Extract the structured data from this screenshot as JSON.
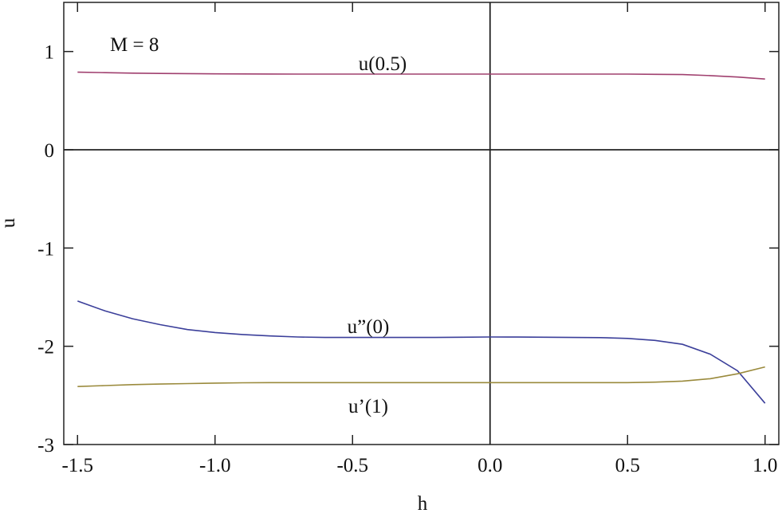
{
  "chart_data": {
    "type": "line",
    "x_label": "h",
    "y_label": "u",
    "annotation": "M = 8",
    "x": [
      -1.5,
      -1.4,
      -1.3,
      -1.2,
      -1.1,
      -1.0,
      -0.9,
      -0.8,
      -0.7,
      -0.6,
      -0.5,
      -0.4,
      -0.3,
      -0.2,
      -0.1,
      0.0,
      0.1,
      0.2,
      0.3,
      0.4,
      0.5,
      0.6,
      0.7,
      0.8,
      0.9,
      1.0
    ],
    "series": [
      {
        "name": "u(0.5)",
        "color": "#a0406f",
        "values": [
          0.79,
          0.785,
          0.78,
          0.777,
          0.775,
          0.773,
          0.772,
          0.771,
          0.77,
          0.77,
          0.77,
          0.77,
          0.77,
          0.77,
          0.77,
          0.77,
          0.77,
          0.77,
          0.77,
          0.77,
          0.77,
          0.768,
          0.765,
          0.755,
          0.74,
          0.72
        ]
      },
      {
        "name": "u”(0)",
        "color": "#3b3f9a",
        "values": [
          -1.54,
          -1.64,
          -1.72,
          -1.78,
          -1.83,
          -1.86,
          -1.88,
          -1.895,
          -1.905,
          -1.91,
          -1.91,
          -1.91,
          -1.91,
          -1.91,
          -1.908,
          -1.905,
          -1.906,
          -1.908,
          -1.91,
          -1.912,
          -1.92,
          -1.94,
          -1.98,
          -2.08,
          -2.25,
          -2.58
        ]
      },
      {
        "name": "u’(1)",
        "color": "#9a8a3c",
        "values": [
          -2.41,
          -2.4,
          -2.39,
          -2.385,
          -2.38,
          -2.375,
          -2.372,
          -2.37,
          -2.37,
          -2.37,
          -2.37,
          -2.37,
          -2.37,
          -2.37,
          -2.37,
          -2.37,
          -2.37,
          -2.37,
          -2.37,
          -2.37,
          -2.37,
          -2.365,
          -2.355,
          -2.33,
          -2.28,
          -2.21
        ]
      }
    ],
    "xlim": [
      -1.55,
      1.05
    ],
    "ylim": [
      -3,
      1.5
    ],
    "xticks": [
      {
        "value": -1.5,
        "label": "-1.5"
      },
      {
        "value": -1.0,
        "label": "-1.0"
      },
      {
        "value": -0.5,
        "label": "-0.5"
      },
      {
        "value": 0.0,
        "label": "0.0"
      },
      {
        "value": 0.5,
        "label": "0.5"
      },
      {
        "value": 1.0,
        "label": "1.0"
      }
    ],
    "yticks": [
      -3,
      -2,
      -1,
      0,
      1
    ]
  }
}
